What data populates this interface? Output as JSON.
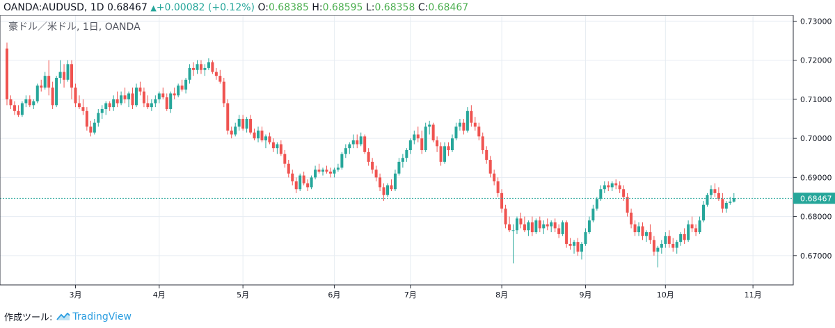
{
  "header": {
    "symbol": "OANDA:AUDUSD, 1D",
    "last": "0.68467",
    "change": "+0.00082 (+0.12%)",
    "o_label": "O:",
    "o": "0.68385",
    "h_label": "H:",
    "h": "0.68595",
    "l_label": "L:",
    "l": "0.68358",
    "c_label": "C:",
    "c": "0.68467"
  },
  "legend": "豪ドル／米ドル, 1日, OANDA",
  "last_price_label": "0.68467",
  "footer": {
    "made_with": "作成ツール:",
    "brand": "TradingView"
  },
  "colors": {
    "up": "#26a69a",
    "down": "#ef5350",
    "grid": "#e6ecf2",
    "price_line": "#26a69a"
  },
  "chart_data": {
    "type": "candlestick",
    "y_ticks": [
      "0.67000",
      "0.68000",
      "0.69000",
      "0.70000",
      "0.71000",
      "0.72000",
      "0.73000"
    ],
    "ylim": [
      0.6625,
      0.7315
    ],
    "month_labels": [
      {
        "label": "3月",
        "index": 18
      },
      {
        "label": "4月",
        "index": 40
      },
      {
        "label": "5月",
        "index": 62
      },
      {
        "label": "6月",
        "index": 86
      },
      {
        "label": "7月",
        "index": 106
      },
      {
        "label": "8月",
        "index": 130
      },
      {
        "label": "9月",
        "index": 152
      },
      {
        "label": "10月",
        "index": 173
      },
      {
        "label": "11月",
        "index": 196
      }
    ],
    "x_max_index": 202,
    "last_price": 0.68467,
    "candles": [
      [
        0.723,
        0.7245,
        0.7085,
        0.71
      ],
      [
        0.71,
        0.711,
        0.7075,
        0.7085
      ],
      [
        0.7085,
        0.7095,
        0.706,
        0.707
      ],
      [
        0.707,
        0.7085,
        0.7055,
        0.706
      ],
      [
        0.706,
        0.7095,
        0.7055,
        0.709
      ],
      [
        0.709,
        0.711,
        0.708,
        0.71
      ],
      [
        0.71,
        0.711,
        0.708,
        0.7085
      ],
      [
        0.7085,
        0.71,
        0.7075,
        0.7095
      ],
      [
        0.7095,
        0.714,
        0.709,
        0.7135
      ],
      [
        0.7135,
        0.715,
        0.712,
        0.713
      ],
      [
        0.713,
        0.717,
        0.7125,
        0.716
      ],
      [
        0.716,
        0.72,
        0.711,
        0.713
      ],
      [
        0.713,
        0.7145,
        0.7075,
        0.7085
      ],
      [
        0.7085,
        0.716,
        0.708,
        0.7155
      ],
      [
        0.7155,
        0.72,
        0.714,
        0.717
      ],
      [
        0.717,
        0.719,
        0.713,
        0.715
      ],
      [
        0.715,
        0.72,
        0.7145,
        0.719
      ],
      [
        0.719,
        0.72,
        0.71,
        0.713
      ],
      [
        0.713,
        0.714,
        0.708,
        0.709
      ],
      [
        0.709,
        0.711,
        0.7075,
        0.708
      ],
      [
        0.708,
        0.71,
        0.706,
        0.707
      ],
      [
        0.707,
        0.708,
        0.702,
        0.703
      ],
      [
        0.703,
        0.7045,
        0.7005,
        0.7015
      ],
      [
        0.7015,
        0.705,
        0.701,
        0.704
      ],
      [
        0.704,
        0.7075,
        0.703,
        0.7065
      ],
      [
        0.7065,
        0.7085,
        0.705,
        0.7075
      ],
      [
        0.7075,
        0.7095,
        0.706,
        0.709
      ],
      [
        0.709,
        0.7095,
        0.707,
        0.708
      ],
      [
        0.708,
        0.711,
        0.707,
        0.71
      ],
      [
        0.71,
        0.712,
        0.708,
        0.709
      ],
      [
        0.709,
        0.712,
        0.7085,
        0.711
      ],
      [
        0.711,
        0.713,
        0.709,
        0.71
      ],
      [
        0.71,
        0.712,
        0.708,
        0.7115
      ],
      [
        0.7115,
        0.713,
        0.7075,
        0.7085
      ],
      [
        0.7085,
        0.714,
        0.708,
        0.713
      ],
      [
        0.713,
        0.7145,
        0.711,
        0.712
      ],
      [
        0.712,
        0.713,
        0.708,
        0.709
      ],
      [
        0.709,
        0.711,
        0.7075,
        0.708
      ],
      [
        0.708,
        0.71,
        0.707,
        0.709
      ],
      [
        0.709,
        0.711,
        0.708,
        0.71
      ],
      [
        0.71,
        0.712,
        0.709,
        0.7115
      ],
      [
        0.7115,
        0.713,
        0.71,
        0.7105
      ],
      [
        0.7105,
        0.7115,
        0.707,
        0.7075
      ],
      [
        0.7075,
        0.712,
        0.7065,
        0.7115
      ],
      [
        0.7115,
        0.713,
        0.71,
        0.711
      ],
      [
        0.711,
        0.714,
        0.7105,
        0.7135
      ],
      [
        0.7135,
        0.715,
        0.712,
        0.7125
      ],
      [
        0.7125,
        0.7155,
        0.7115,
        0.715
      ],
      [
        0.715,
        0.719,
        0.714,
        0.718
      ],
      [
        0.718,
        0.7195,
        0.716,
        0.7175
      ],
      [
        0.7175,
        0.72,
        0.7165,
        0.719
      ],
      [
        0.719,
        0.72,
        0.7165,
        0.7175
      ],
      [
        0.7175,
        0.719,
        0.716,
        0.718
      ],
      [
        0.718,
        0.7205,
        0.7175,
        0.7195
      ],
      [
        0.7195,
        0.72,
        0.7165,
        0.717
      ],
      [
        0.717,
        0.718,
        0.715,
        0.716
      ],
      [
        0.716,
        0.7175,
        0.714,
        0.7145
      ],
      [
        0.7145,
        0.7155,
        0.708,
        0.709
      ],
      [
        0.709,
        0.71,
        0.701,
        0.702
      ],
      [
        0.702,
        0.703,
        0.7,
        0.701
      ],
      [
        0.701,
        0.704,
        0.7005,
        0.703
      ],
      [
        0.703,
        0.706,
        0.702,
        0.705
      ],
      [
        0.705,
        0.706,
        0.702,
        0.7025
      ],
      [
        0.7025,
        0.7055,
        0.7015,
        0.705
      ],
      [
        0.705,
        0.706,
        0.701,
        0.7015
      ],
      [
        0.7015,
        0.7025,
        0.6995,
        0.7
      ],
      [
        0.7,
        0.703,
        0.699,
        0.702
      ],
      [
        0.702,
        0.703,
        0.699,
        0.6995
      ],
      [
        0.6995,
        0.701,
        0.6975,
        0.7005
      ],
      [
        0.7005,
        0.7015,
        0.6985,
        0.699
      ],
      [
        0.699,
        0.7,
        0.6965,
        0.6975
      ],
      [
        0.6975,
        0.699,
        0.696,
        0.6985
      ],
      [
        0.6985,
        0.6995,
        0.6955,
        0.696
      ],
      [
        0.696,
        0.697,
        0.6925,
        0.6935
      ],
      [
        0.6935,
        0.6945,
        0.69,
        0.691
      ],
      [
        0.691,
        0.692,
        0.688,
        0.689
      ],
      [
        0.689,
        0.69,
        0.686,
        0.687
      ],
      [
        0.687,
        0.691,
        0.6865,
        0.6905
      ],
      [
        0.6905,
        0.6915,
        0.688,
        0.6885
      ],
      [
        0.6885,
        0.6895,
        0.6865,
        0.6875
      ],
      [
        0.6875,
        0.6905,
        0.687,
        0.69
      ],
      [
        0.69,
        0.693,
        0.6895,
        0.692
      ],
      [
        0.692,
        0.6935,
        0.691,
        0.6915
      ],
      [
        0.6915,
        0.6925,
        0.6905,
        0.692
      ],
      [
        0.692,
        0.693,
        0.691,
        0.6915
      ],
      [
        0.6915,
        0.6925,
        0.69,
        0.691
      ],
      [
        0.691,
        0.6925,
        0.69,
        0.692
      ],
      [
        0.692,
        0.6935,
        0.6915,
        0.6925
      ],
      [
        0.6925,
        0.6965,
        0.692,
        0.696
      ],
      [
        0.696,
        0.6985,
        0.695,
        0.6975
      ],
      [
        0.6975,
        0.699,
        0.696,
        0.6985
      ],
      [
        0.6985,
        0.701,
        0.6975,
        0.6995
      ],
      [
        0.6995,
        0.701,
        0.6975,
        0.6985
      ],
      [
        0.6985,
        0.7015,
        0.698,
        0.7005
      ],
      [
        0.7005,
        0.701,
        0.696,
        0.6965
      ],
      [
        0.6965,
        0.6975,
        0.693,
        0.694
      ],
      [
        0.694,
        0.695,
        0.691,
        0.692
      ],
      [
        0.692,
        0.693,
        0.689,
        0.69
      ],
      [
        0.69,
        0.691,
        0.6865,
        0.6875
      ],
      [
        0.6875,
        0.6885,
        0.684,
        0.6855
      ],
      [
        0.6855,
        0.6885,
        0.685,
        0.688
      ],
      [
        0.688,
        0.6895,
        0.6865,
        0.687
      ],
      [
        0.687,
        0.692,
        0.6865,
        0.691
      ],
      [
        0.691,
        0.695,
        0.6905,
        0.694
      ],
      [
        0.694,
        0.696,
        0.6925,
        0.695
      ],
      [
        0.695,
        0.6975,
        0.694,
        0.697
      ],
      [
        0.697,
        0.7,
        0.696,
        0.6995
      ],
      [
        0.6995,
        0.702,
        0.6985,
        0.701
      ],
      [
        0.701,
        0.703,
        0.699,
        0.7
      ],
      [
        0.7,
        0.702,
        0.696,
        0.697
      ],
      [
        0.697,
        0.704,
        0.6965,
        0.703
      ],
      [
        0.703,
        0.7045,
        0.701,
        0.7035
      ],
      [
        0.7035,
        0.704,
        0.699,
        0.6995
      ],
      [
        0.6995,
        0.7005,
        0.6965,
        0.698
      ],
      [
        0.698,
        0.699,
        0.693,
        0.694
      ],
      [
        0.694,
        0.699,
        0.6935,
        0.698
      ],
      [
        0.698,
        0.699,
        0.6955,
        0.697
      ],
      [
        0.697,
        0.701,
        0.6965,
        0.7
      ],
      [
        0.7,
        0.704,
        0.6995,
        0.703
      ],
      [
        0.703,
        0.705,
        0.702,
        0.704
      ],
      [
        0.704,
        0.705,
        0.701,
        0.702
      ],
      [
        0.702,
        0.708,
        0.7015,
        0.707
      ],
      [
        0.707,
        0.7085,
        0.703,
        0.704
      ],
      [
        0.704,
        0.7055,
        0.702,
        0.703
      ],
      [
        0.703,
        0.704,
        0.6995,
        0.7005
      ],
      [
        0.7005,
        0.7015,
        0.696,
        0.697
      ],
      [
        0.697,
        0.698,
        0.6935,
        0.6945
      ],
      [
        0.6945,
        0.6955,
        0.69,
        0.691
      ],
      [
        0.691,
        0.692,
        0.688,
        0.689
      ],
      [
        0.689,
        0.69,
        0.685,
        0.686
      ],
      [
        0.686,
        0.687,
        0.681,
        0.682
      ],
      [
        0.682,
        0.683,
        0.677,
        0.678
      ],
      [
        0.678,
        0.68,
        0.676,
        0.6765
      ],
      [
        0.6765,
        0.678,
        0.668,
        0.6765
      ],
      [
        0.6765,
        0.68,
        0.6755,
        0.6795
      ],
      [
        0.6795,
        0.681,
        0.677,
        0.678
      ],
      [
        0.678,
        0.68,
        0.676,
        0.6765
      ],
      [
        0.6765,
        0.679,
        0.675,
        0.6785
      ],
      [
        0.6785,
        0.68,
        0.675,
        0.676
      ],
      [
        0.676,
        0.6795,
        0.6755,
        0.679
      ],
      [
        0.679,
        0.68,
        0.676,
        0.677
      ],
      [
        0.677,
        0.679,
        0.6755,
        0.678
      ],
      [
        0.678,
        0.6795,
        0.6765,
        0.6775
      ],
      [
        0.6775,
        0.679,
        0.676,
        0.6785
      ],
      [
        0.6785,
        0.6795,
        0.676,
        0.677
      ],
      [
        0.677,
        0.678,
        0.6745,
        0.6755
      ],
      [
        0.6755,
        0.679,
        0.675,
        0.6785
      ],
      [
        0.6785,
        0.679,
        0.672,
        0.673
      ],
      [
        0.673,
        0.6745,
        0.6715,
        0.6725
      ],
      [
        0.6725,
        0.674,
        0.6705,
        0.6735
      ],
      [
        0.6735,
        0.6745,
        0.67,
        0.671
      ],
      [
        0.671,
        0.6735,
        0.669,
        0.673
      ],
      [
        0.673,
        0.677,
        0.6725,
        0.676
      ],
      [
        0.676,
        0.68,
        0.6755,
        0.679
      ],
      [
        0.679,
        0.683,
        0.6785,
        0.682
      ],
      [
        0.682,
        0.685,
        0.6815,
        0.6845
      ],
      [
        0.6845,
        0.688,
        0.684,
        0.687
      ],
      [
        0.687,
        0.689,
        0.686,
        0.688
      ],
      [
        0.688,
        0.689,
        0.6865,
        0.6875
      ],
      [
        0.6875,
        0.689,
        0.6865,
        0.6885
      ],
      [
        0.6885,
        0.6895,
        0.687,
        0.688
      ],
      [
        0.688,
        0.689,
        0.686,
        0.687
      ],
      [
        0.687,
        0.688,
        0.684,
        0.685
      ],
      [
        0.685,
        0.686,
        0.68,
        0.681
      ],
      [
        0.681,
        0.682,
        0.677,
        0.678
      ],
      [
        0.678,
        0.679,
        0.675,
        0.676
      ],
      [
        0.676,
        0.6785,
        0.675,
        0.6775
      ],
      [
        0.6775,
        0.6785,
        0.674,
        0.675
      ],
      [
        0.675,
        0.6765,
        0.6735,
        0.676
      ],
      [
        0.676,
        0.678,
        0.673,
        0.674
      ],
      [
        0.674,
        0.675,
        0.67,
        0.671
      ],
      [
        0.671,
        0.6725,
        0.667,
        0.672
      ],
      [
        0.672,
        0.674,
        0.6705,
        0.673
      ],
      [
        0.673,
        0.676,
        0.672,
        0.675
      ],
      [
        0.675,
        0.6765,
        0.672,
        0.673
      ],
      [
        0.673,
        0.6745,
        0.671,
        0.672
      ],
      [
        0.672,
        0.674,
        0.6705,
        0.6735
      ],
      [
        0.6735,
        0.676,
        0.6725,
        0.6755
      ],
      [
        0.6755,
        0.677,
        0.673,
        0.674
      ],
      [
        0.674,
        0.679,
        0.6735,
        0.678
      ],
      [
        0.678,
        0.68,
        0.676,
        0.677
      ],
      [
        0.677,
        0.678,
        0.675,
        0.676
      ],
      [
        0.676,
        0.68,
        0.6755,
        0.679
      ],
      [
        0.679,
        0.684,
        0.6785,
        0.683
      ],
      [
        0.683,
        0.686,
        0.6825,
        0.6855
      ],
      [
        0.6855,
        0.688,
        0.6845,
        0.687
      ],
      [
        0.687,
        0.6885,
        0.685,
        0.686
      ],
      [
        0.686,
        0.6875,
        0.684,
        0.6845
      ],
      [
        0.6845,
        0.686,
        0.681,
        0.682
      ],
      [
        0.682,
        0.684,
        0.681,
        0.6835
      ],
      [
        0.6835,
        0.685,
        0.683,
        0.6838
      ],
      [
        0.6838,
        0.686,
        0.6836,
        0.6847
      ]
    ]
  }
}
